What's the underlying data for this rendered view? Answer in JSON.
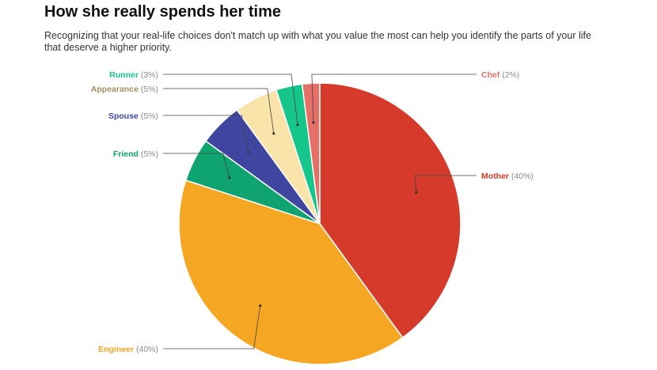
{
  "title": "How she really spends her time",
  "subtitle": "Recognizing that your real-life choices don't match up with what you value the most can help you identify the parts of your life that deserve a higher priority.",
  "chart_data": {
    "type": "pie",
    "start_angle_deg": 0,
    "direction": "clockwise",
    "slices": [
      {
        "label": "Mother",
        "value": 40,
        "display": "(40%)",
        "color": "#d63a2b",
        "side": "right"
      },
      {
        "label": "Engineer",
        "value": 40,
        "display": "(40%)",
        "color": "#f5a623",
        "side": "left"
      },
      {
        "label": "Friend",
        "value": 5,
        "display": "(5%)",
        "color": "#0ea36f",
        "side": "left"
      },
      {
        "label": "Spouse",
        "value": 5,
        "display": "(5%)",
        "color": "#3f46a0",
        "side": "left"
      },
      {
        "label": "Appearance",
        "value": 5,
        "display": "(5%)",
        "color": "#f8e3a9",
        "label_color": "#a58e60",
        "side": "left"
      },
      {
        "label": "Runner",
        "value": 3,
        "display": "(3%)",
        "color": "#16c58a",
        "side": "left"
      },
      {
        "label": "Chef",
        "value": 2,
        "display": "(2%)",
        "color": "#e57067",
        "side": "right"
      }
    ]
  }
}
